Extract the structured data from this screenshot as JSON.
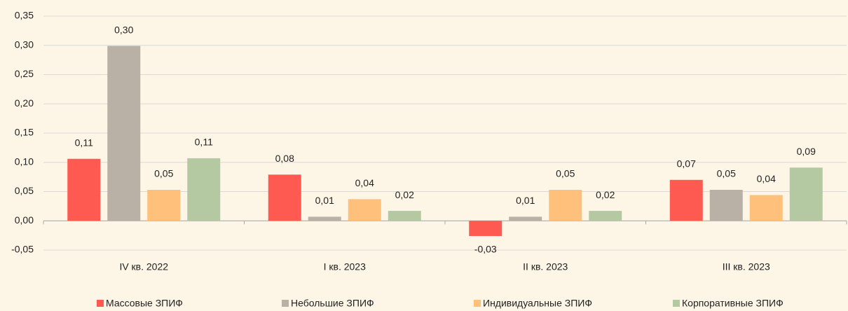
{
  "chart_data": {
    "type": "bar",
    "categories": [
      "IV кв. 2022",
      "I кв. 2023",
      "II кв. 2023",
      "III кв. 2023"
    ],
    "series": [
      {
        "name": "Массовые ЗПИФ",
        "color": "#ff5a52",
        "values": [
          0.106,
          0.079,
          -0.026,
          0.07
        ],
        "value_labels": [
          "0,11",
          "0,08",
          "-0,03",
          "0,07"
        ]
      },
      {
        "name": "Небольшие ЗПИФ",
        "color": "#b9b1a5",
        "values": [
          0.299,
          0.007,
          0.007,
          0.053
        ],
        "value_labels": [
          "0,30",
          "0,01",
          "0,01",
          "0,05"
        ]
      },
      {
        "name": "Индивидуальные ЗПИФ",
        "color": "#ffc07b",
        "values": [
          0.053,
          0.037,
          0.053,
          0.044
        ],
        "value_labels": [
          "0,05",
          "0,04",
          "0,05",
          "0,04"
        ]
      },
      {
        "name": "Корпоративные ЗПИФ",
        "color": "#b4c9a1",
        "values": [
          0.107,
          0.017,
          0.017,
          0.091
        ],
        "value_labels": [
          "0,11",
          "0,02",
          "0,02",
          "0,09"
        ]
      }
    ],
    "ylim": [
      -0.05,
      0.35
    ],
    "yticks": [
      {
        "value": -0.05,
        "label": "-0,05"
      },
      {
        "value": 0,
        "label": "0,00"
      },
      {
        "value": 0.05,
        "label": "0,05"
      },
      {
        "value": 0.1,
        "label": "0,10"
      },
      {
        "value": 0.15,
        "label": "0,15"
      },
      {
        "value": 0.2,
        "label": "0,20"
      },
      {
        "value": 0.25,
        "label": "0,25"
      },
      {
        "value": 0.3,
        "label": "0,30"
      },
      {
        "value": 0.35,
        "label": "0,35"
      }
    ],
    "grid": true,
    "legend": "bottom"
  }
}
